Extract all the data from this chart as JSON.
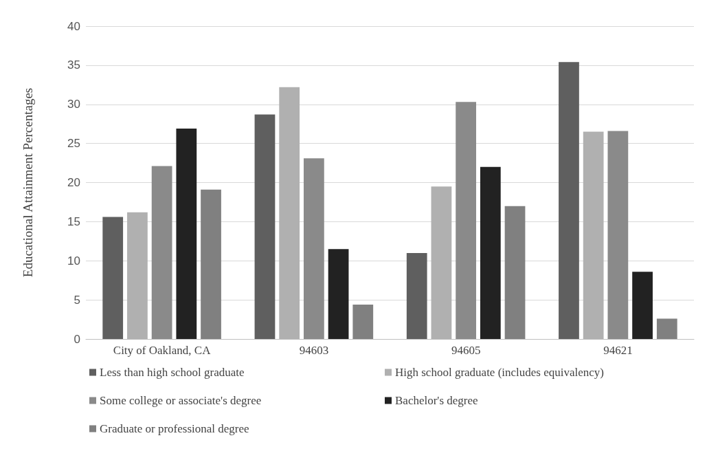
{
  "chart_data": {
    "type": "bar",
    "ylabel": "Educational Attainment Percentages",
    "categories": [
      "City of Oakland, CA",
      "94603",
      "94605",
      "94621"
    ],
    "series": [
      {
        "name": "Less than high school graduate",
        "color": "#5f5f5f",
        "values": [
          15.6,
          28.7,
          11.0,
          35.4
        ]
      },
      {
        "name": "High school graduate (includes equivalency)",
        "color": "#b0b0b0",
        "values": [
          16.2,
          32.2,
          19.5,
          26.5
        ]
      },
      {
        "name": "Some college or associate's degree",
        "color": "#8a8a8a",
        "values": [
          22.1,
          23.1,
          30.3,
          26.6
        ]
      },
      {
        "name": "Bachelor's degree",
        "color": "#222222",
        "values": [
          26.9,
          11.5,
          22.0,
          8.6
        ]
      },
      {
        "name": "Graduate or professional degree",
        "color": "#808080",
        "values": [
          19.1,
          4.4,
          17.0,
          2.6
        ]
      }
    ],
    "ylim": [
      0,
      40
    ],
    "yticks": [
      0,
      5,
      10,
      15,
      20,
      25,
      30,
      35,
      40
    ],
    "grid": "y",
    "legend": "bottom"
  }
}
